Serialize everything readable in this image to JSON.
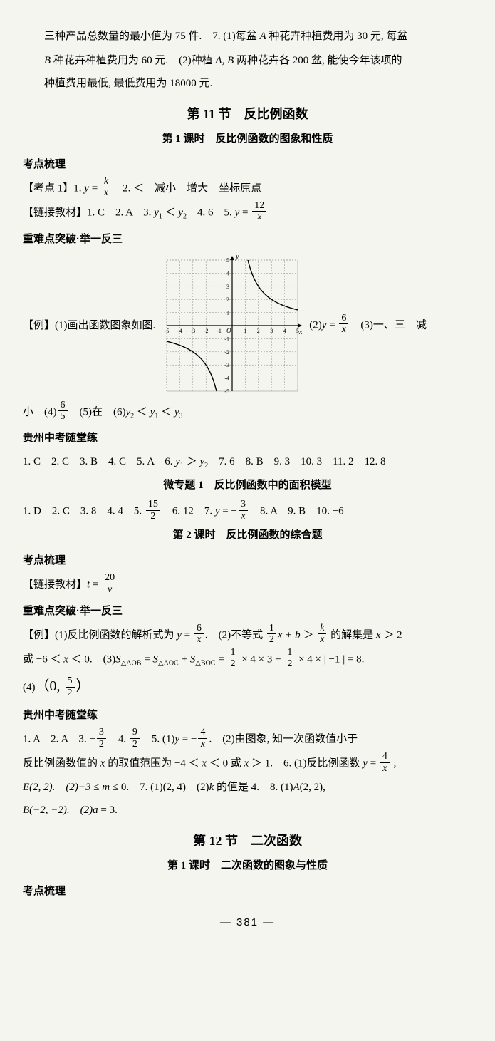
{
  "intro": {
    "p1_a": "三种产品总数量的最小值为 75 件.　7. (1)每盆 ",
    "p1_b": " 种花卉种植费用为 30 元, 每盆",
    "p2_a": "",
    "p2_b": " 种花卉种植费用为 60 元.　(2)种植 ",
    "p2_c": " 两种花卉各 200 盆, 能使今年该项的",
    "p3": "种植费用最低, 最低费用为 18000 元."
  },
  "italic": {
    "A": "A",
    "B": "B",
    "AB": "A, B"
  },
  "sec11": {
    "title": "第 11 节　反比例函数",
    "lesson1": "第 1 课时　反比例函数的图象和性质",
    "h_kaodian": "考点梳理",
    "kd1_pre": "【考点 1】1. ",
    "kd1_y": "y",
    "kd1_eq": " = ",
    "kd1_num": "k",
    "kd1_den": "x",
    "kd1_rest": "　2. ＜　减小　增大　坐标原点",
    "link_pre": "【链接教材】1. C　2. A　3. ",
    "link_y1": "y",
    "link_sub1": "1",
    "link_lt": " ＜ ",
    "link_y2": "y",
    "link_sub2": "2",
    "link_mid": "　4. 6　5. ",
    "link_y3": "y",
    "link_eq": " = ",
    "link_num": "12",
    "link_den": "x",
    "h_zhnd": "重难点突破·举一反三",
    "ex_left": "【例】(1)画出函数图象如图.",
    "ex_r_pre": "(2)",
    "ex_r_y": "y",
    "ex_r_eq": " = ",
    "ex_r_num": "6",
    "ex_r_den": "x",
    "ex_r_3": "　(3)一、三　减",
    "after1_pre": "小　(4)",
    "after1_num": "6",
    "after1_den": "5",
    "after1_mid": "　(5)在　(6)",
    "after1_y2": "y",
    "after1_s2": "2",
    "after1_lt1": " ＜ ",
    "after1_y1": "y",
    "after1_s1": "1",
    "after1_lt2": " ＜ ",
    "after1_y3": "y",
    "after1_s3": "3",
    "h_gz": "贵州中考随堂练",
    "gz1_a": "1. C　2. C　3. B　4. C　5. A　6. ",
    "gz1_y1": "y",
    "gz1_s1": "1",
    "gz1_gt": " ＞ ",
    "gz1_y2": "y",
    "gz1_s2": "2",
    "gz1_b": "　7. 6　8. B　9. 3　10. 3　11. 2　12. 8",
    "micro_title": "微专题 1　反比例函数中的面积模型",
    "micro_a": "1. D　2. C　3. 8　4. 4　5. ",
    "micro_num1": "15",
    "micro_den1": "2",
    "micro_mid": "　6. 12　7. ",
    "micro_y": "y",
    "micro_eq": " = −",
    "micro_num2": "3",
    "micro_den2": "x",
    "micro_b": "　8. A　9. B　10. −6",
    "lesson2": "第 2 课时　反比例函数的综合题",
    "link2_pre": "【链接教材】",
    "link2_t": "t",
    "link2_eq": " = ",
    "link2_num": "20",
    "link2_den": "v",
    "ex2_a": "【例】(1)反比例函数的解析式为 ",
    "ex2_y": "y",
    "ex2_eq": " = ",
    "ex2_num": "6",
    "ex2_den": "x",
    "ex2_b": ".　(2)不等式 ",
    "ex2_num2": "1",
    "ex2_den2": "2",
    "ex2_xb": "x + b",
    "ex2_gt": " ＞ ",
    "ex2_num3": "k",
    "ex2_den3": "x",
    "ex2_c": " 的解集是 ",
    "ex2_x": "x",
    "ex2_d": " ＞ 2",
    "ex2_line2a": "或 −6 ＜ ",
    "ex2_line2x": "x",
    "ex2_line2b": " ＜ 0.　(3)",
    "ex2_S1": "S",
    "ex2_tri1": "△AOB",
    "ex2_eqS": " = ",
    "ex2_S2": "S",
    "ex2_tri2": "△AOC",
    "ex2_plus": " + ",
    "ex2_S3": "S",
    "ex2_tri3": "△BOC",
    "ex2_eqS2": " = ",
    "ex2_fn1": "1",
    "ex2_fd1": "2",
    "ex2_t1": " × 4 × 3 + ",
    "ex2_fn2": "1",
    "ex2_fd2": "2",
    "ex2_t2": " × 4 × | −1 | = 8.",
    "ex2_4a": "(4)",
    "ex2_4b": "（0, ",
    "ex2_4num": "5",
    "ex2_4den": "2",
    "ex2_4c": "）",
    "gz2_a": "1. A　2. A　3. −",
    "gz2_n1": "3",
    "gz2_d1": "2",
    "gz2_b": "　4. ",
    "gz2_n2": "9",
    "gz2_d2": "2",
    "gz2_c": "　5. (1)",
    "gz2_y": "y",
    "gz2_eq": " = −",
    "gz2_n3": "4",
    "gz2_d3": "x",
    "gz2_d": ".　(2)由图象, 知一次函数值小于",
    "gz2_line2a": "反比例函数值的 ",
    "gz2_line2x": "x",
    "gz2_line2b": " 的取值范围为 −4 ＜ ",
    "gz2_line2x2": "x",
    "gz2_line2c": " ＜ 0 或 ",
    "gz2_line2x3": "x",
    "gz2_line2d": " ＞ 1.　6. (1)反比例函数 ",
    "gz2_line2y": "y",
    "gz2_line2eq": " = ",
    "gz2_line2n": "4",
    "gz2_line2den": "x",
    "gz2_line2e": " ,",
    "gz2_line3a": "E(2, 2).　(2)−3 ≤ ",
    "gz2_line3m": "m",
    "gz2_line3b": " ≤ 0.　7. (1)(2, 4)　(2)",
    "gz2_line3k": "k",
    "gz2_line3c": " 的值是 4.　8. (1)",
    "gz2_line3A": "A",
    "gz2_line3d": "(2, 2),",
    "gz2_line4a": "B(−2, −2).　(2)",
    "gz2_line4aa": "a",
    "gz2_line4b": " = 3."
  },
  "sec12": {
    "title": "第 12 节　二次函数",
    "lesson1": "第 1 课时　二次函数的图象与性质",
    "h_kaodian": "考点梳理"
  },
  "page": "— 381 —",
  "graph": {
    "size": 200,
    "xmin": -5,
    "xmax": 5,
    "ymin": -5,
    "ymax": 5,
    "grid_color": "#888",
    "axis_color": "#000",
    "curve_color": "#000",
    "curve_width": 1.4,
    "xlabel": "x",
    "ylabel": "y",
    "ticks": [
      -5,
      -4,
      -3,
      -2,
      -1,
      1,
      2,
      3,
      4,
      5
    ]
  }
}
